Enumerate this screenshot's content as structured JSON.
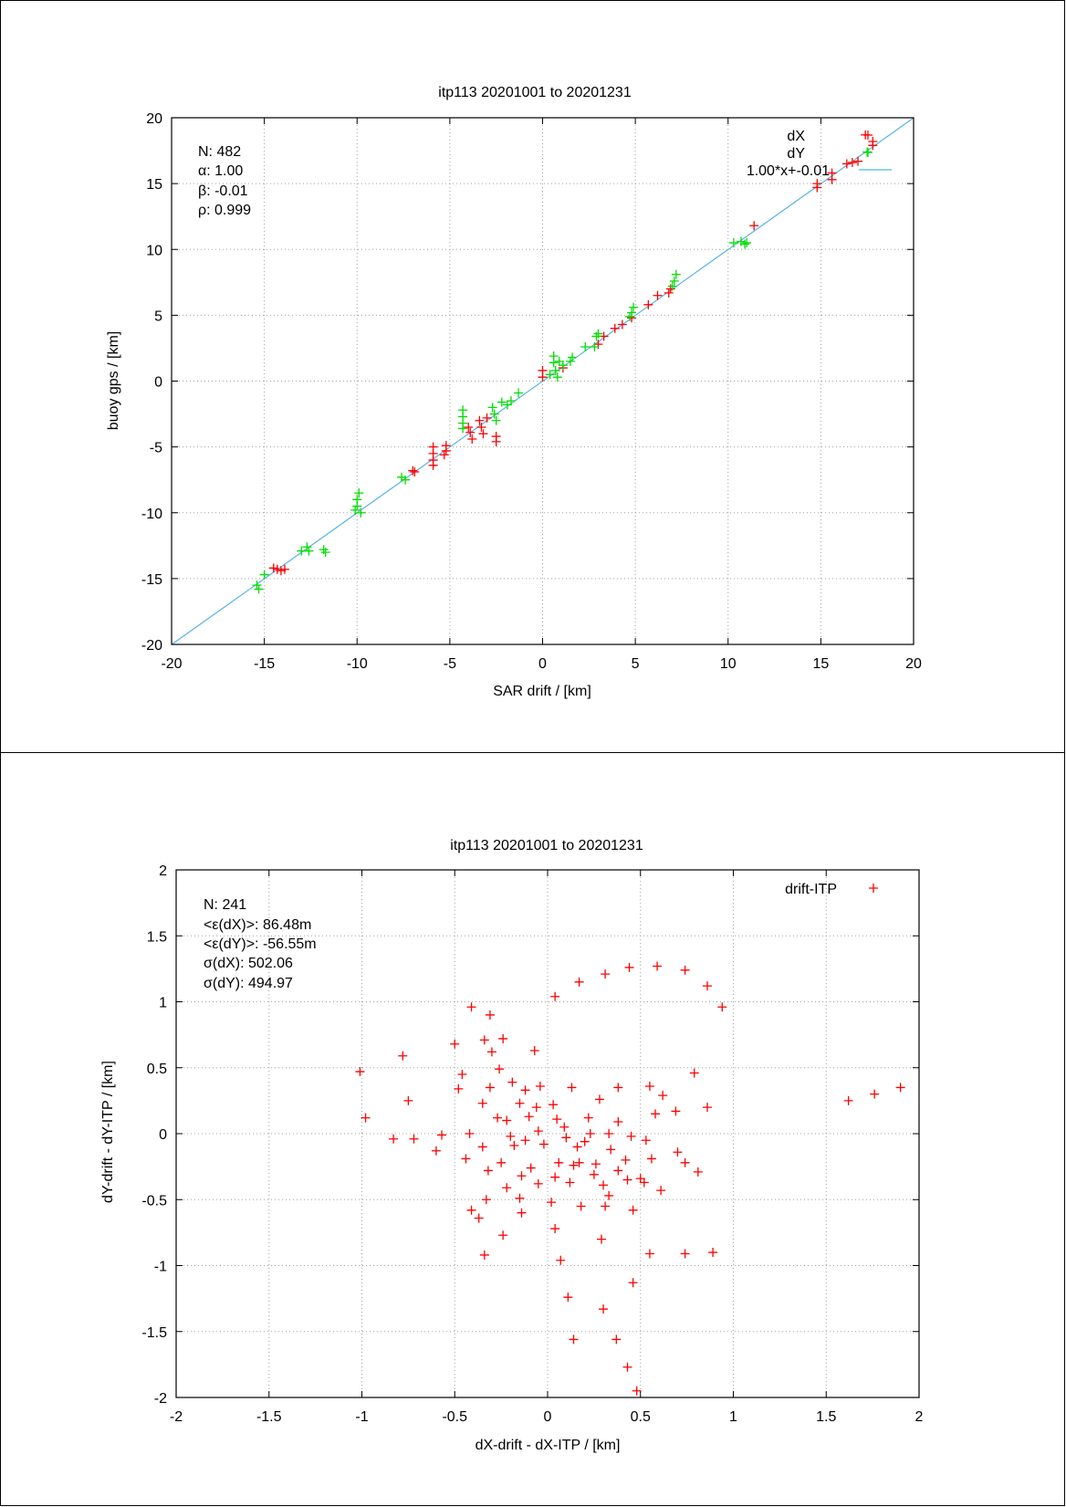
{
  "chart_data": [
    {
      "type": "scatter",
      "title": "itp113 20201001 to 20201231",
      "xlabel": "SAR drift / [km]",
      "ylabel": "buoy gps / [km]",
      "xlim": [
        -20,
        20
      ],
      "ylim": [
        -20,
        20
      ],
      "xticks": [
        "-20",
        "-15",
        "-10",
        "-5",
        "0",
        "5",
        "10",
        "15",
        "20"
      ],
      "yticks": [
        "-20",
        "-15",
        "-10",
        "-5",
        "0",
        "5",
        "10",
        "15",
        "20"
      ],
      "grid": true,
      "legend_position": "top-right",
      "stats": [
        "N: 482",
        "α: 1.00",
        "β: -0.01",
        "ρ: 0.999"
      ],
      "series": [
        {
          "name": "dX",
          "color": "#ff0000",
          "marker": "plus",
          "points": [
            [
              -14.5,
              -14.2
            ],
            [
              -14.3,
              -14.3
            ],
            [
              -14.1,
              -14.4
            ],
            [
              -13.9,
              -14.3
            ],
            [
              -7.0,
              -6.8
            ],
            [
              -6.9,
              -6.9
            ],
            [
              -5.9,
              -5.0
            ],
            [
              -5.9,
              -5.5
            ],
            [
              -5.9,
              -6.0
            ],
            [
              -5.9,
              -6.4
            ],
            [
              -5.2,
              -4.9
            ],
            [
              -5.2,
              -5.3
            ],
            [
              -5.3,
              -5.6
            ],
            [
              -4.0,
              -3.5
            ],
            [
              -3.9,
              -3.9
            ],
            [
              -3.8,
              -4.4
            ],
            [
              -3.4,
              -3.0
            ],
            [
              -3.3,
              -3.5
            ],
            [
              -3.2,
              -4.0
            ],
            [
              -3.0,
              -2.8
            ],
            [
              -2.5,
              -4.2
            ],
            [
              -2.5,
              -4.6
            ],
            [
              0.0,
              0.3
            ],
            [
              0.0,
              0.8
            ],
            [
              1.1,
              1.0
            ],
            [
              3.0,
              2.8
            ],
            [
              3.3,
              3.4
            ],
            [
              3.9,
              4.0
            ],
            [
              4.3,
              4.3
            ],
            [
              4.8,
              4.8
            ],
            [
              5.7,
              5.8
            ],
            [
              6.2,
              6.5
            ],
            [
              6.8,
              6.7
            ],
            [
              6.9,
              7.0
            ],
            [
              11.4,
              11.8
            ],
            [
              14.8,
              14.7
            ],
            [
              14.8,
              15.0
            ],
            [
              15.6,
              15.3
            ],
            [
              15.6,
              15.8
            ],
            [
              16.4,
              16.5
            ],
            [
              16.7,
              16.6
            ],
            [
              17.0,
              16.7
            ],
            [
              17.4,
              18.7
            ],
            [
              17.8,
              17.9
            ],
            [
              17.8,
              18.2
            ]
          ]
        },
        {
          "name": "dY",
          "color": "#00dd00",
          "marker": "plus",
          "points": [
            [
              -15.4,
              -15.5
            ],
            [
              -15.3,
              -15.8
            ],
            [
              -15.0,
              -14.7
            ],
            [
              -13.0,
              -12.9
            ],
            [
              -12.7,
              -12.6
            ],
            [
              -12.6,
              -12.9
            ],
            [
              -11.8,
              -12.8
            ],
            [
              -11.7,
              -13.0
            ],
            [
              -7.6,
              -7.3
            ],
            [
              -7.4,
              -7.5
            ],
            [
              -10.1,
              -9.8
            ],
            [
              -10.0,
              -9.5
            ],
            [
              -10.0,
              -9.0
            ],
            [
              -9.9,
              -8.5
            ],
            [
              -9.8,
              -10.0
            ],
            [
              -4.3,
              -2.2
            ],
            [
              -4.3,
              -2.7
            ],
            [
              -4.3,
              -3.2
            ],
            [
              -4.3,
              -3.6
            ],
            [
              -2.7,
              -2.0
            ],
            [
              -2.6,
              -2.5
            ],
            [
              -2.5,
              -3.0
            ],
            [
              -2.2,
              -1.6
            ],
            [
              -1.9,
              -1.8
            ],
            [
              -1.7,
              -1.5
            ],
            [
              -1.3,
              -0.9
            ],
            [
              0.4,
              0.5
            ],
            [
              0.6,
              1.4
            ],
            [
              0.6,
              1.9
            ],
            [
              0.7,
              0.8
            ],
            [
              0.8,
              0.3
            ],
            [
              0.9,
              1.5
            ],
            [
              1.1,
              1.2
            ],
            [
              1.5,
              1.5
            ],
            [
              1.6,
              1.8
            ],
            [
              2.3,
              2.6
            ],
            [
              2.8,
              2.6
            ],
            [
              2.9,
              3.4
            ],
            [
              3.0,
              3.6
            ],
            [
              4.7,
              4.9
            ],
            [
              4.8,
              5.2
            ],
            [
              4.9,
              5.6
            ],
            [
              7.0,
              7.2
            ],
            [
              7.1,
              7.6
            ],
            [
              7.2,
              8.1
            ],
            [
              10.3,
              10.5
            ],
            [
              10.7,
              10.6
            ],
            [
              10.9,
              10.4
            ],
            [
              11.0,
              10.5
            ],
            [
              17.5,
              17.4
            ]
          ]
        },
        {
          "name": "1.00*x+-0.01",
          "color": "#56b4e9",
          "marker": "line",
          "slope": 1.0,
          "intercept": -0.01
        }
      ]
    },
    {
      "type": "scatter",
      "title": "itp113 20201001 to 20201231",
      "xlabel": "dX-drift - dX-ITP / [km]",
      "ylabel": "dY-drift - dY-ITP / [km]",
      "xlim": [
        -2,
        2
      ],
      "ylim": [
        -2,
        2
      ],
      "xticks": [
        "-2",
        "-1.5",
        "-1",
        "-0.5",
        "0",
        "0.5",
        "1",
        "1.5",
        "2"
      ],
      "yticks": [
        "-2",
        "-1.5",
        "-1",
        "-0.5",
        "0",
        "0.5",
        "1",
        "1.5",
        "2"
      ],
      "grid": true,
      "legend_position": "top-right",
      "stats": [
        "N: 241",
        "<ε(dX)>:  86.48m",
        "<ε(dY)>: -56.55m",
        "σ(dX):  502.06",
        "σ(dY):  494.97"
      ],
      "series": [
        {
          "name": "drift-ITP",
          "color": "#ff0000",
          "marker": "plus",
          "points": [
            [
              0.44,
              1.26
            ],
            [
              0.59,
              1.27
            ],
            [
              0.74,
              1.24
            ],
            [
              0.31,
              1.21
            ],
            [
              0.17,
              1.15
            ],
            [
              0.86,
              1.12
            ],
            [
              0.94,
              0.96
            ],
            [
              0.04,
              1.04
            ],
            [
              -0.41,
              0.96
            ],
            [
              -0.31,
              0.9
            ],
            [
              -0.5,
              0.68
            ],
            [
              -0.34,
              0.71
            ],
            [
              -0.24,
              0.72
            ],
            [
              -0.07,
              0.63
            ],
            [
              -0.78,
              0.59
            ],
            [
              -1.01,
              0.47
            ],
            [
              -0.3,
              0.62
            ],
            [
              -0.46,
              0.45
            ],
            [
              -0.26,
              0.49
            ],
            [
              0.79,
              0.46
            ],
            [
              -0.19,
              0.39
            ],
            [
              -0.48,
              0.34
            ],
            [
              -0.31,
              0.35
            ],
            [
              -0.12,
              0.33
            ],
            [
              -0.04,
              0.36
            ],
            [
              0.13,
              0.35
            ],
            [
              0.38,
              0.35
            ],
            [
              0.55,
              0.36
            ],
            [
              -0.75,
              0.25
            ],
            [
              -0.35,
              0.23
            ],
            [
              -0.15,
              0.23
            ],
            [
              0.03,
              0.22
            ],
            [
              0.28,
              0.26
            ],
            [
              0.62,
              0.29
            ],
            [
              1.62,
              0.25
            ],
            [
              1.76,
              0.3
            ],
            [
              1.9,
              0.35
            ],
            [
              0.86,
              0.2
            ],
            [
              0.69,
              0.17
            ],
            [
              -0.98,
              0.12
            ],
            [
              -0.27,
              0.12
            ],
            [
              -0.1,
              0.13
            ],
            [
              0.05,
              0.11
            ],
            [
              0.22,
              0.12
            ],
            [
              0.38,
              0.09
            ],
            [
              0.58,
              0.15
            ],
            [
              -0.57,
              -0.01
            ],
            [
              -0.83,
              -0.04
            ],
            [
              -0.72,
              -0.04
            ],
            [
              -0.42,
              0.0
            ],
            [
              -0.2,
              -0.02
            ],
            [
              -0.05,
              0.02
            ],
            [
              0.1,
              -0.03
            ],
            [
              0.23,
              0.0
            ],
            [
              0.33,
              0.0
            ],
            [
              0.45,
              -0.02
            ],
            [
              -0.6,
              -0.13
            ],
            [
              -0.35,
              -0.1
            ],
            [
              -0.18,
              -0.09
            ],
            [
              -0.02,
              -0.08
            ],
            [
              0.16,
              -0.1
            ],
            [
              0.34,
              -0.12
            ],
            [
              0.53,
              -0.05
            ],
            [
              0.7,
              -0.14
            ],
            [
              -0.44,
              -0.19
            ],
            [
              -0.25,
              -0.22
            ],
            [
              -0.09,
              -0.26
            ],
            [
              0.06,
              -0.22
            ],
            [
              0.14,
              -0.24
            ],
            [
              0.17,
              -0.22
            ],
            [
              0.26,
              -0.23
            ],
            [
              0.42,
              -0.2
            ],
            [
              0.56,
              -0.19
            ],
            [
              0.74,
              -0.22
            ],
            [
              -0.32,
              -0.28
            ],
            [
              -0.14,
              -0.32
            ],
            [
              0.04,
              -0.33
            ],
            [
              0.25,
              -0.31
            ],
            [
              0.5,
              -0.34
            ],
            [
              0.81,
              -0.29
            ],
            [
              -0.22,
              -0.41
            ],
            [
              -0.05,
              -0.38
            ],
            [
              0.12,
              -0.37
            ],
            [
              0.3,
              -0.39
            ],
            [
              0.43,
              -0.35
            ],
            [
              0.61,
              -0.43
            ],
            [
              -0.33,
              -0.5
            ],
            [
              -0.15,
              -0.49
            ],
            [
              0.02,
              -0.52
            ],
            [
              0.18,
              -0.55
            ],
            [
              0.33,
              -0.47
            ],
            [
              0.52,
              -0.37
            ],
            [
              -0.41,
              -0.58
            ],
            [
              -0.37,
              -0.64
            ],
            [
              -0.14,
              -0.6
            ],
            [
              0.31,
              -0.55
            ],
            [
              0.46,
              -0.58
            ],
            [
              0.04,
              -0.72
            ],
            [
              -0.24,
              -0.77
            ],
            [
              0.29,
              -0.8
            ],
            [
              -0.34,
              -0.92
            ],
            [
              0.07,
              -0.96
            ],
            [
              0.55,
              -0.91
            ],
            [
              0.74,
              -0.91
            ],
            [
              0.89,
              -0.9
            ],
            [
              0.46,
              -1.13
            ],
            [
              0.11,
              -1.24
            ],
            [
              0.3,
              -1.33
            ],
            [
              0.14,
              -1.56
            ],
            [
              0.37,
              -1.56
            ],
            [
              0.43,
              -1.77
            ],
            [
              0.48,
              -1.95
            ],
            [
              -0.22,
              0.1
            ],
            [
              -0.06,
              0.2
            ],
            [
              0.09,
              0.05
            ],
            [
              -0.12,
              -0.05
            ],
            [
              0.2,
              -0.06
            ],
            [
              0.38,
              -0.28
            ]
          ]
        }
      ]
    }
  ]
}
